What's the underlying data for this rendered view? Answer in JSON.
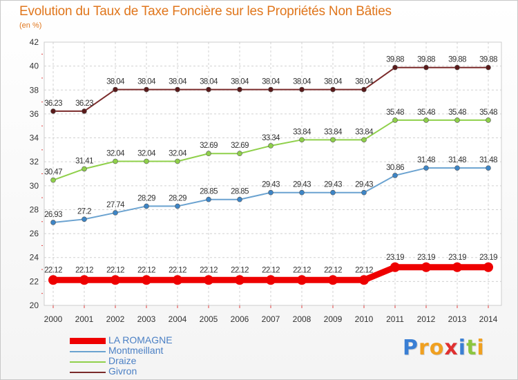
{
  "header": {
    "title": "Evolution du Taux de Taxe Foncière sur les Propriétés Non Bâties",
    "unit": "(en %)"
  },
  "logo": {
    "letters": [
      "P",
      "r",
      "o",
      "x",
      "i",
      "t",
      "i"
    ],
    "colors": [
      "#3a7fd4",
      "#f0a020",
      "#f0a020",
      "#e03030",
      "#3a7fd4",
      "#8cc63f",
      "#f0a020"
    ]
  },
  "chart_data": {
    "type": "line",
    "title": "Evolution du Taux de Taxe Foncière sur les Propriétés Non Bâties",
    "ylabel": "(en %)",
    "xlabel": "",
    "ylim": [
      20,
      42
    ],
    "yticks": [
      20,
      22,
      24,
      26,
      28,
      30,
      32,
      34,
      36,
      38,
      40,
      42
    ],
    "grid": true,
    "legend": "bottom-left",
    "x": [
      "2000",
      "2001",
      "2002",
      "2003",
      "2004",
      "2005",
      "2006",
      "2007",
      "2008",
      "2009",
      "2010",
      "2011",
      "2012",
      "2013",
      "2014"
    ],
    "series": [
      {
        "name": "Givron",
        "color": "#7a2a2a",
        "marker": "#5a1a1a",
        "values": [
          36.23,
          36.23,
          38.04,
          38.04,
          38.04,
          38.04,
          38.04,
          38.04,
          38.04,
          38.04,
          38.04,
          39.88,
          39.88,
          39.88,
          39.88
        ],
        "labels": [
          "36.23",
          "36.23",
          "38.04",
          "38.04",
          "38.04",
          "38.04",
          "38.04",
          "38.04",
          "38.04",
          "38.04",
          "38.04",
          "39.88",
          "39.88",
          "39.88",
          "39.88"
        ]
      },
      {
        "name": "Draize",
        "color": "#8fd04a",
        "marker": "#8fd04a",
        "values": [
          30.47,
          31.41,
          32.04,
          32.04,
          32.04,
          32.69,
          32.69,
          33.34,
          33.84,
          33.84,
          33.84,
          35.48,
          35.48,
          35.48,
          35.48
        ],
        "labels": [
          "30.47",
          "31.41",
          "32.04",
          "32.04",
          "32.04",
          "32.69",
          "32.69",
          "33.34",
          "33.84",
          "33.84",
          "33.84",
          "35.48",
          "35.48",
          "35.48",
          "35.48"
        ]
      },
      {
        "name": "Montmeillant",
        "color": "#6aa2d0",
        "marker": "#3d85c6",
        "values": [
          26.93,
          27.2,
          27.74,
          28.29,
          28.29,
          28.85,
          28.85,
          29.43,
          29.43,
          29.43,
          29.43,
          30.86,
          31.48,
          31.48,
          31.48
        ],
        "labels": [
          "26.93",
          "27.2",
          "27.74",
          "28.29",
          "28.29",
          "28.85",
          "28.85",
          "29.43",
          "29.43",
          "29.43",
          "29.43",
          "30.86",
          "31.48",
          "31.48",
          "31.48"
        ]
      },
      {
        "name": "LA ROMAGNE",
        "color": "#ee0000",
        "marker": "#ee0000",
        "values": [
          22.12,
          22.12,
          22.12,
          22.12,
          22.12,
          22.12,
          22.12,
          22.12,
          22.12,
          22.12,
          22.12,
          23.19,
          23.19,
          23.19,
          23.19
        ],
        "labels": [
          "22.12",
          "22.12",
          "22.12",
          "22.12",
          "22.12",
          "22.12",
          "22.12",
          "22.12",
          "22.12",
          "22.12",
          "22.12",
          "23.19",
          "23.19",
          "23.19",
          "23.19"
        ]
      }
    ],
    "legend_entries": [
      {
        "name": "LA ROMAGNE",
        "color": "#ee0000",
        "thick": true
      },
      {
        "name": "Montmeillant",
        "color": "#6aa2d0",
        "thick": false
      },
      {
        "name": "Draize",
        "color": "#8fd04a",
        "thick": false
      },
      {
        "name": "Givron",
        "color": "#7a2a2a",
        "thick": false
      }
    ]
  }
}
